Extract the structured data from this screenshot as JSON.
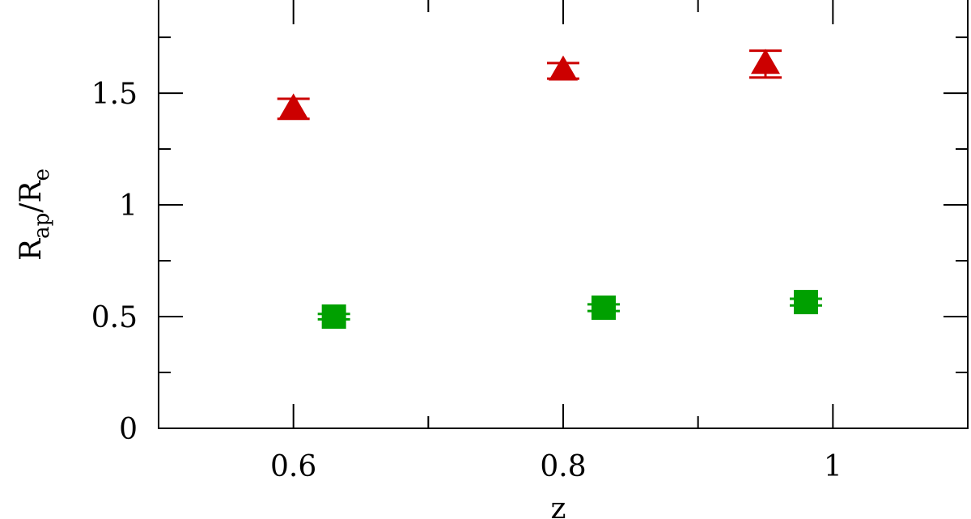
{
  "chart_data": {
    "type": "scatter",
    "xlabel": "z",
    "ylabel": [
      {
        "text": "R"
      },
      {
        "text": "ap",
        "sub": true
      },
      {
        "text": "/R"
      },
      {
        "text": "e",
        "sub": true
      }
    ],
    "xlim": [
      0.5,
      1.1
    ],
    "ylim": [
      0,
      1.917
    ],
    "xticks": [
      0.6,
      0.8,
      1
    ],
    "yticks": [
      0,
      0.5,
      1,
      1.5
    ],
    "xminorticks": [
      0.7,
      0.9
    ],
    "yminorticks": [
      0.25,
      0.75,
      1.25,
      1.75
    ],
    "series": [
      {
        "marker": "triangle",
        "color": "#cc0000",
        "x": [
          0.6,
          0.8,
          0.95
        ],
        "values": [
          1.43,
          1.6,
          1.63
        ],
        "errors": [
          0.045,
          0.035,
          0.06
        ]
      },
      {
        "marker": "square",
        "color": "#00a000",
        "x": [
          0.63,
          0.83,
          0.98
        ],
        "values": [
          0.5,
          0.54,
          0.565
        ],
        "errors": [
          0.012,
          0.015,
          0.015
        ]
      }
    ]
  }
}
